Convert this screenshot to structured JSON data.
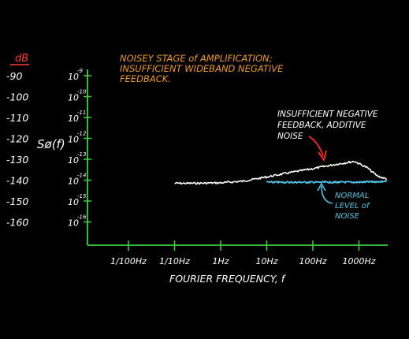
{
  "chart_data": {
    "type": "line",
    "title_lines": [
      "NOISEY STAGE of AMPLIFICATION;",
      "INSUFFICIENT WIDEBAND NEGATIVE",
      "FEEDBACK."
    ],
    "xlabel": "FOURIER FREQUENCY, f",
    "ylabel": "Sø(f)",
    "db_unit_label": "dB",
    "x_scale": "log",
    "x_ticks": [
      {
        "value": 0.01,
        "label": "1/100Hz"
      },
      {
        "value": 0.1,
        "label": "1/10Hz"
      },
      {
        "value": 1,
        "label": "1Hz"
      },
      {
        "value": 10,
        "label": "10Hz"
      },
      {
        "value": 100,
        "label": "100Hz"
      },
      {
        "value": 1000,
        "label": "1000Hz"
      }
    ],
    "y_scale": "log",
    "y_ticks": [
      {
        "mantissa": "10",
        "exp": "-9"
      },
      {
        "mantissa": "10",
        "exp": "-10"
      },
      {
        "mantissa": "10",
        "exp": "-11"
      },
      {
        "mantissa": "10",
        "exp": "-12"
      },
      {
        "mantissa": "10",
        "exp": "-13"
      },
      {
        "mantissa": "10",
        "exp": "-14"
      },
      {
        "mantissa": "10",
        "exp": "-15"
      },
      {
        "mantissa": "10",
        "exp": "-16"
      }
    ],
    "db_ticks": [
      "-90",
      "-100",
      "-110",
      "-120",
      "-130",
      "-140",
      "-150",
      "-160"
    ],
    "series": [
      {
        "name": "INSUFFICIENT NEGATIVE FEEDBACK, ADDITIVE NOISE",
        "label_lines": [
          "INSUFFICIENT NEGATIVE",
          "FEEDBACK, ADDITIVE",
          "NOISE"
        ],
        "color": "#ffffff",
        "x": [
          0.1,
          0.3,
          1,
          3,
          10,
          30,
          100,
          300,
          800,
          1500,
          2500,
          4000
        ],
        "y_db": [
          -141.5,
          -141.5,
          -141.3,
          -140.5,
          -138.5,
          -136.5,
          -134.5,
          -132.5,
          -131,
          -134,
          -138,
          -139.5
        ]
      },
      {
        "name": "NORMAL LEVEL of NOISE",
        "label_lines": [
          "NORMAL",
          "LEVEL of",
          "NOISE"
        ],
        "color": "#4fc3e8",
        "x": [
          10,
          30,
          100,
          300,
          1000,
          2000,
          4000
        ],
        "y_db": [
          -141,
          -141,
          -141,
          -141,
          -141,
          -140.8,
          -140.6
        ]
      }
    ],
    "colors": {
      "axes": "#3ed13e",
      "title": "#f29a1e",
      "db_label": "#ff3b30",
      "arrow_additive": "#ff2a2a",
      "arrow_normal": "#4fc3e8",
      "text": "#ffffff"
    }
  }
}
